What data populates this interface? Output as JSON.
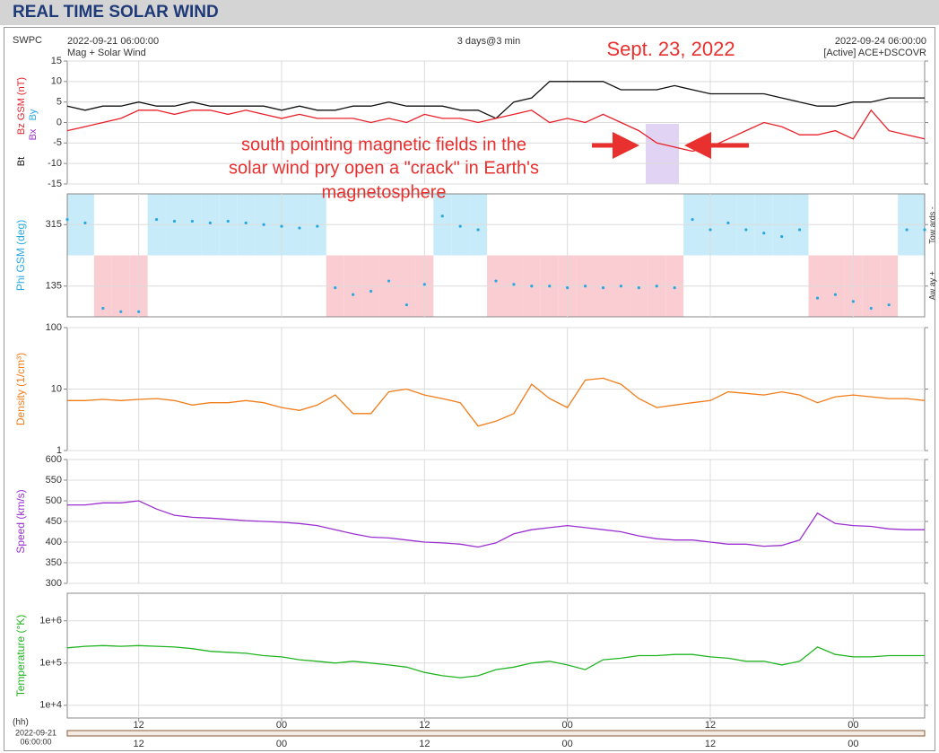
{
  "page": {
    "title": "REAL TIME SOLAR WIND",
    "source": "SWPC",
    "start": "2022-09-21 06:00:00",
    "subtitle": "Mag + Solar Wind",
    "span": "3 days@3 min",
    "end": "2022-09-24 06:00:00",
    "status": "[Active] ACE+DSCOVR",
    "annotations": [
      "Sept. 23, 2022",
      "south pointing magnetic fields in the",
      "solar wind pry open a \"crack\" in Earth's",
      "magnetosphere"
    ],
    "annotation_color": "#e8302f",
    "x_axis_label": "(hh)",
    "x_start_date": "2022-09-21",
    "x_start_time": "06:00:00"
  },
  "chart_data": [
    {
      "type": "line",
      "log": false,
      "grid": true,
      "x": [
        0,
        1.5,
        3,
        4.5,
        6,
        7.5,
        9,
        10.5,
        12,
        13.5,
        15,
        16.5,
        18,
        19.5,
        21,
        22.5,
        24,
        25.5,
        27,
        28.5,
        30,
        31.5,
        33,
        34.5,
        36,
        37.5,
        39,
        40.5,
        42,
        43.5,
        45,
        46.5,
        48,
        49.5,
        51,
        52.5,
        54,
        55.5,
        57,
        58.5,
        60,
        61.5,
        63,
        64.5,
        66,
        67.5,
        69,
        70.5,
        72
      ],
      "xlim": [
        0,
        72
      ],
      "xticks": [
        {
          "value": 6,
          "label": "12"
        },
        {
          "value": 18,
          "label": "00"
        },
        {
          "value": 30,
          "label": "12"
        },
        {
          "value": 42,
          "label": "00"
        },
        {
          "value": 54,
          "label": "12"
        },
        {
          "value": 66,
          "label": "00"
        }
      ],
      "ylim": [
        -15,
        15
      ],
      "yticks": [
        15,
        10,
        5,
        0,
        -5,
        -10,
        -15
      ],
      "series": [
        {
          "name": "Bt",
          "color": "#111111",
          "values": [
            4,
            3,
            4,
            4,
            5,
            4,
            4,
            5,
            4,
            4,
            4,
            4,
            3,
            4,
            3,
            3,
            4,
            4,
            5,
            4,
            4,
            4,
            3,
            3,
            1,
            5,
            6,
            10,
            10,
            10,
            10,
            8,
            8,
            8,
            9,
            8,
            7,
            7,
            7,
            7,
            6,
            5,
            4,
            4,
            5,
            5,
            6,
            6,
            6
          ]
        },
        {
          "name": "Bz GSM (nT)",
          "color": "#e8202a",
          "values": [
            -2,
            -1,
            0,
            1,
            3,
            3,
            2,
            3,
            3,
            2,
            3,
            2,
            1,
            2,
            1,
            1,
            1,
            0,
            1,
            0,
            2,
            1,
            1,
            0,
            1,
            2,
            3,
            0,
            1,
            0,
            2,
            0,
            -2,
            -5,
            -6,
            -7,
            -6,
            -4,
            -2,
            0,
            -1,
            -3,
            -3,
            -2,
            -4,
            3,
            -2,
            -3,
            -4
          ]
        }
      ],
      "extra_labels": [
        {
          "text": "Bx",
          "color": "#9b30d0"
        },
        {
          "text": "By",
          "color": "#29a8e0"
        }
      ]
    },
    {
      "type": "scatter",
      "log": false,
      "grid": true,
      "x": [
        0,
        1.5,
        3,
        4.5,
        6,
        7.5,
        9,
        10.5,
        12,
        13.5,
        15,
        16.5,
        18,
        19.5,
        21,
        22.5,
        24,
        25.5,
        27,
        28.5,
        30,
        31.5,
        33,
        34.5,
        36,
        37.5,
        39,
        40.5,
        42,
        43.5,
        45,
        46.5,
        48,
        49.5,
        51,
        52.5,
        54,
        55.5,
        57,
        58.5,
        60,
        61.5,
        63,
        64.5,
        66,
        67.5,
        69,
        70.5,
        72
      ],
      "xlim": [
        0,
        72
      ],
      "xticks": [
        {
          "value": 6,
          "label": "12"
        },
        {
          "value": 18,
          "label": "00"
        },
        {
          "value": 30,
          "label": "12"
        },
        {
          "value": 42,
          "label": "00"
        },
        {
          "value": 54,
          "label": "12"
        },
        {
          "value": 66,
          "label": "00"
        }
      ],
      "ylim": [
        45,
        405
      ],
      "yticks": [
        135,
        315
      ],
      "series": [
        {
          "name": "Phi GSM (deg)",
          "color": "#29a8e0",
          "values": [
            330,
            320,
            70,
            60,
            60,
            330,
            325,
            325,
            320,
            325,
            320,
            315,
            310,
            305,
            310,
            130,
            110,
            120,
            150,
            80,
            140,
            340,
            310,
            300,
            150,
            140,
            135,
            135,
            130,
            135,
            130,
            135,
            130,
            135,
            130,
            330,
            300,
            320,
            300,
            290,
            280,
            300,
            100,
            110,
            90,
            70,
            80,
            300,
            300
          ]
        }
      ],
      "band_colors": {
        "towards": "#c8ebf9",
        "away": "#f9cdd2"
      },
      "side_labels": [
        "Tow ards -",
        "Aw ay +"
      ]
    },
    {
      "type": "line",
      "log": true,
      "grid": true,
      "x": [
        0,
        1.5,
        3,
        4.5,
        6,
        7.5,
        9,
        10.5,
        12,
        13.5,
        15,
        16.5,
        18,
        19.5,
        21,
        22.5,
        24,
        25.5,
        27,
        28.5,
        30,
        31.5,
        33,
        34.5,
        36,
        37.5,
        39,
        40.5,
        42,
        43.5,
        45,
        46.5,
        48,
        49.5,
        51,
        52.5,
        54,
        55.5,
        57,
        58.5,
        60,
        61.5,
        63,
        64.5,
        66,
        67.5,
        69,
        70.5,
        72
      ],
      "xlim": [
        0,
        72
      ],
      "xticks": [
        {
          "value": 6,
          "label": "12"
        },
        {
          "value": 18,
          "label": "00"
        },
        {
          "value": 30,
          "label": "12"
        },
        {
          "value": 42,
          "label": "00"
        },
        {
          "value": 54,
          "label": "12"
        },
        {
          "value": 66,
          "label": "00"
        }
      ],
      "ylim": [
        1,
        100
      ],
      "yticks": [
        100,
        10,
        1
      ],
      "series": [
        {
          "name": "Density (1/cm³)",
          "color": "#f07d1a",
          "values": [
            6.5,
            6.5,
            6.8,
            6.5,
            6.8,
            7,
            6.5,
            5.5,
            6,
            6,
            6.5,
            6,
            5,
            4.5,
            5.5,
            8,
            4,
            4,
            9,
            10,
            8,
            7,
            6,
            2.5,
            3,
            4,
            12,
            7,
            5,
            14,
            15,
            12,
            7,
            5,
            5.5,
            6,
            6.5,
            9,
            8.5,
            8,
            9,
            8,
            6,
            7.5,
            8,
            7.5,
            7,
            7,
            6.5
          ]
        }
      ]
    },
    {
      "type": "line",
      "log": false,
      "grid": true,
      "x": [
        0,
        1.5,
        3,
        4.5,
        6,
        7.5,
        9,
        10.5,
        12,
        13.5,
        15,
        16.5,
        18,
        19.5,
        21,
        22.5,
        24,
        25.5,
        27,
        28.5,
        30,
        31.5,
        33,
        34.5,
        36,
        37.5,
        39,
        40.5,
        42,
        43.5,
        45,
        46.5,
        48,
        49.5,
        51,
        52.5,
        54,
        55.5,
        57,
        58.5,
        60,
        61.5,
        63,
        64.5,
        66,
        67.5,
        69,
        70.5,
        72
      ],
      "xlim": [
        0,
        72
      ],
      "xticks": [
        {
          "value": 6,
          "label": "12"
        },
        {
          "value": 18,
          "label": "00"
        },
        {
          "value": 30,
          "label": "12"
        },
        {
          "value": 42,
          "label": "00"
        },
        {
          "value": 54,
          "label": "12"
        },
        {
          "value": 66,
          "label": "00"
        }
      ],
      "ylim": [
        300,
        600
      ],
      "yticks": [
        600,
        550,
        500,
        450,
        400,
        350,
        300
      ],
      "series": [
        {
          "name": "Speed (km/s)",
          "color": "#9b30d0",
          "values": [
            490,
            490,
            495,
            495,
            500,
            480,
            465,
            460,
            458,
            455,
            452,
            450,
            448,
            445,
            440,
            430,
            420,
            412,
            410,
            405,
            400,
            398,
            395,
            388,
            398,
            420,
            430,
            435,
            440,
            435,
            430,
            425,
            415,
            408,
            405,
            405,
            400,
            395,
            395,
            390,
            392,
            405,
            470,
            445,
            440,
            438,
            432,
            430,
            430
          ]
        }
      ]
    },
    {
      "type": "line",
      "log": true,
      "grid": true,
      "x": [
        0,
        1.5,
        3,
        4.5,
        6,
        7.5,
        9,
        10.5,
        12,
        13.5,
        15,
        16.5,
        18,
        19.5,
        21,
        22.5,
        24,
        25.5,
        27,
        28.5,
        30,
        31.5,
        33,
        34.5,
        36,
        37.5,
        39,
        40.5,
        42,
        43.5,
        45,
        46.5,
        48,
        49.5,
        51,
        52.5,
        54,
        55.5,
        57,
        58.5,
        60,
        61.5,
        63,
        64.5,
        66,
        67.5,
        69,
        70.5,
        72
      ],
      "xlim": [
        0,
        72
      ],
      "xticks": [
        {
          "value": 6,
          "label": "12"
        },
        {
          "value": 18,
          "label": "00"
        },
        {
          "value": 30,
          "label": "12"
        },
        {
          "value": 42,
          "label": "00"
        },
        {
          "value": 54,
          "label": "12"
        },
        {
          "value": 66,
          "label": "00"
        }
      ],
      "ylim": [
        5000,
        4500000
      ],
      "yticks": [
        {
          "value": 1000000,
          "label": "1e+6"
        },
        {
          "value": 100000,
          "label": "1e+5"
        },
        {
          "value": 10000,
          "label": "1e+4"
        }
      ],
      "series": [
        {
          "name": "Temperature (°K)",
          "color": "#22b422",
          "values": [
            230000,
            250000,
            260000,
            250000,
            260000,
            250000,
            240000,
            220000,
            190000,
            180000,
            170000,
            150000,
            140000,
            120000,
            110000,
            100000,
            110000,
            100000,
            90000,
            80000,
            60000,
            50000,
            45000,
            50000,
            70000,
            80000,
            100000,
            110000,
            90000,
            70000,
            120000,
            130000,
            150000,
            150000,
            160000,
            160000,
            140000,
            130000,
            110000,
            110000,
            90000,
            110000,
            240000,
            160000,
            140000,
            140000,
            150000,
            150000,
            150000
          ]
        }
      ]
    }
  ]
}
